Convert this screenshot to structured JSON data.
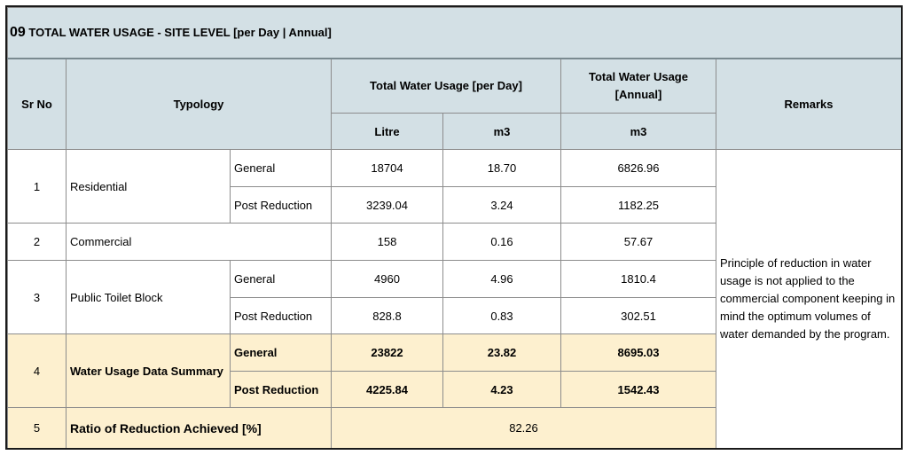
{
  "title": {
    "number": "09",
    "text": "TOTAL WATER USAGE - SITE LEVEL [per Day | Annual]"
  },
  "headers": {
    "sr_no": "Sr No",
    "typology": "Typology",
    "per_day": "Total Water Usage [per Day]",
    "annual": "Total Water Usage [Annual]",
    "remarks": "Remarks",
    "litre": "Litre",
    "m3_day": "m3",
    "m3_annual": "m3"
  },
  "rows": {
    "residential": {
      "sr": "1",
      "name": "Residential",
      "general": {
        "label": "General",
        "litre": "18704",
        "m3": "18.70",
        "annual": "6826.96"
      },
      "post": {
        "label": "Post Reduction",
        "litre": "3239.04",
        "m3": "3.24",
        "annual": "1182.25"
      }
    },
    "commercial": {
      "sr": "2",
      "name": "Commercial",
      "litre": "158",
      "m3": "0.16",
      "annual": "57.67"
    },
    "toilet": {
      "sr": "3",
      "name": "Public Toilet Block",
      "general": {
        "label": "General",
        "litre": "4960",
        "m3": "4.96",
        "annual": "1810.4"
      },
      "post": {
        "label": "Post Reduction",
        "litre": "828.8",
        "m3": "0.83",
        "annual": "302.51"
      }
    },
    "summary": {
      "sr": "4",
      "name": "Water Usage Data Summary",
      "general": {
        "label": "General",
        "litre": "23822",
        "m3": "23.82",
        "annual": "8695.03"
      },
      "post": {
        "label": "Post Reduction",
        "litre": "4225.84",
        "m3": "4.23",
        "annual": "1542.43"
      }
    },
    "ratio": {
      "sr": "5",
      "name": "Ratio of Reduction Achieved [%]",
      "value": "82.26"
    }
  },
  "remarks_text": "Principle of reduction in water usage is not applied to the commercial component keeping in mind the optimum volumes of water demanded by the program."
}
